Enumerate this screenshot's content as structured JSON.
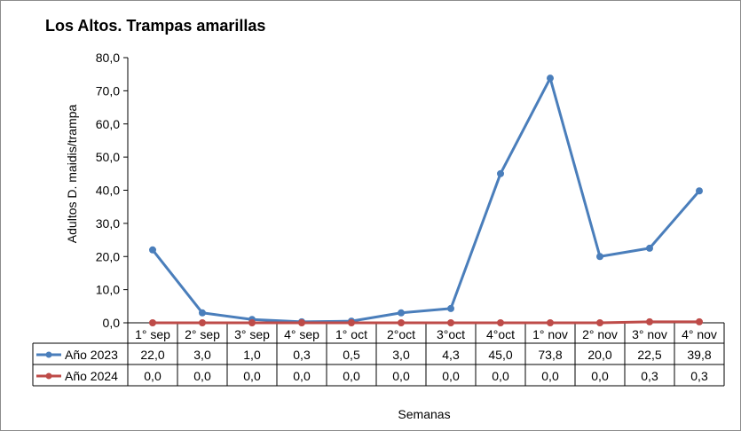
{
  "chart_data": {
    "type": "line",
    "title": "Los Altos. Trampas amarillas",
    "xlabel": "Semanas",
    "ylabel": "Adultos D. maidis/trampa",
    "ylim": [
      0,
      80
    ],
    "yticks": [
      "0,0",
      "10,0",
      "20,0",
      "30,0",
      "40,0",
      "50,0",
      "60,0",
      "70,0",
      "80,0"
    ],
    "categories": [
      "1° sep",
      "2° sep",
      "3° sep",
      "4° sep",
      "1° oct",
      "2°oct",
      "3°oct",
      "4°oct",
      "1° nov",
      "2° nov",
      "3° nov",
      "4° nov"
    ],
    "series": [
      {
        "name": "Año 2023",
        "color": "#4a7ebb",
        "values": [
          22.0,
          3.0,
          1.0,
          0.3,
          0.5,
          3.0,
          4.3,
          45.0,
          73.8,
          20.0,
          22.5,
          39.8
        ],
        "labels": [
          "22,0",
          "3,0",
          "1,0",
          "0,3",
          "0,5",
          "3,0",
          "4,3",
          "45,0",
          "73,8",
          "20,0",
          "22,5",
          "39,8"
        ]
      },
      {
        "name": "Año 2024",
        "color": "#be4b48",
        "values": [
          0,
          0,
          0,
          0,
          0,
          0,
          0,
          0,
          0,
          0,
          0.3,
          0.3
        ],
        "labels": [
          "0,0",
          "0,0",
          "0,0",
          "0,0",
          "0,0",
          "0,0",
          "0,0",
          "0,0",
          "0,0",
          "0,0",
          "0,3",
          "0,3"
        ]
      }
    ],
    "grid": false,
    "legend": "data-table"
  }
}
